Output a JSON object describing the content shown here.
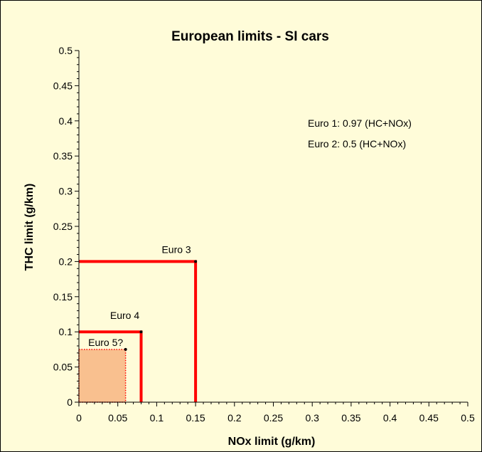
{
  "chart_data": {
    "type": "scatter",
    "title": "European limits - SI cars",
    "xlabel": "NOx limit (g/km)",
    "ylabel": "THC limit (g/km)",
    "xlim": [
      0,
      0.5
    ],
    "ylim": [
      0,
      0.5
    ],
    "x_ticks": [
      "0",
      "0.05",
      "0.1",
      "0.15",
      "0.2",
      "0.25",
      "0.3",
      "0.35",
      "0.4",
      "0.45",
      "0.5"
    ],
    "y_ticks": [
      "0",
      "0.05",
      "0.1",
      "0.15",
      "0.2",
      "0.25",
      "0.3",
      "0.35",
      "0.4",
      "0.45",
      "0.5"
    ],
    "grid": false,
    "series": [
      {
        "label": "Euro 3",
        "nox": 0.15,
        "thc": 0.2,
        "style": "solid",
        "color": "#ff0000"
      },
      {
        "label": "Euro 4",
        "nox": 0.08,
        "thc": 0.1,
        "style": "solid",
        "color": "#ff0000"
      },
      {
        "label": "Euro 5?",
        "nox": 0.06,
        "thc": 0.075,
        "style": "dotted-filled",
        "color": "#ff0000",
        "fill": "#f9c08f"
      }
    ],
    "annotations": [
      "Euro 1: 0.97 (HC+NOx)",
      "Euro 2: 0.5 (HC+NOx)"
    ]
  }
}
